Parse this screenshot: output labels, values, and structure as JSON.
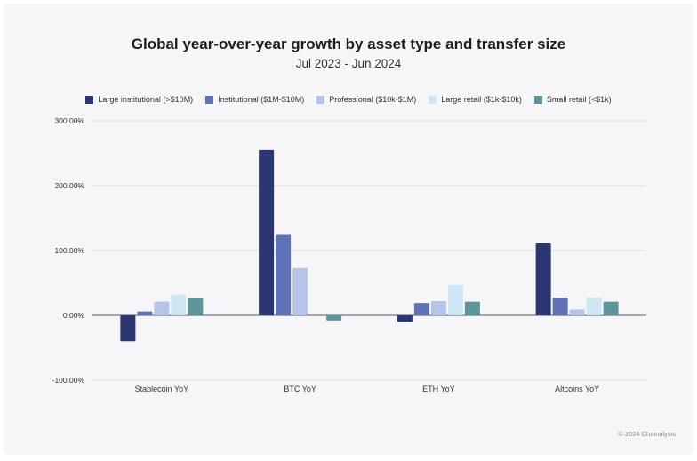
{
  "chart_data": {
    "type": "bar",
    "title": "Global year-over-year growth by asset type and transfer size",
    "subtitle": "Jul 2023 - Jun 2024",
    "categories": [
      "Stablecoin YoY",
      "BTC YoY",
      "ETH YoY",
      "Altcoins YoY"
    ],
    "series": [
      {
        "name": "Large institutional (>$10M)",
        "color": "#2b3572",
        "values": [
          -40,
          255,
          -10,
          111
        ]
      },
      {
        "name": "Institutional ($1M-$10M)",
        "color": "#5f72b8",
        "values": [
          6,
          124,
          19,
          27
        ]
      },
      {
        "name": "Professional ($10k-$1M)",
        "color": "#b7c4ea",
        "values": [
          21,
          73,
          22,
          9
        ]
      },
      {
        "name": "Large retail ($1k-$10k)",
        "color": "#cfe6f5",
        "values": [
          32,
          0,
          47,
          27
        ]
      },
      {
        "name": "Small retail (<$1k)",
        "color": "#5d959b",
        "values": [
          26,
          -8,
          21,
          21
        ]
      }
    ],
    "ylim": [
      -100,
      300
    ],
    "yticks": [
      -100,
      0,
      100,
      200,
      300
    ],
    "ytick_labels": [
      "-100.00%",
      "0.00%",
      "100.00%",
      "200.00%",
      "300.00%"
    ],
    "grid": true,
    "legend_position": "top"
  },
  "footer": {
    "credit": "© 2024 Chainalysis"
  }
}
